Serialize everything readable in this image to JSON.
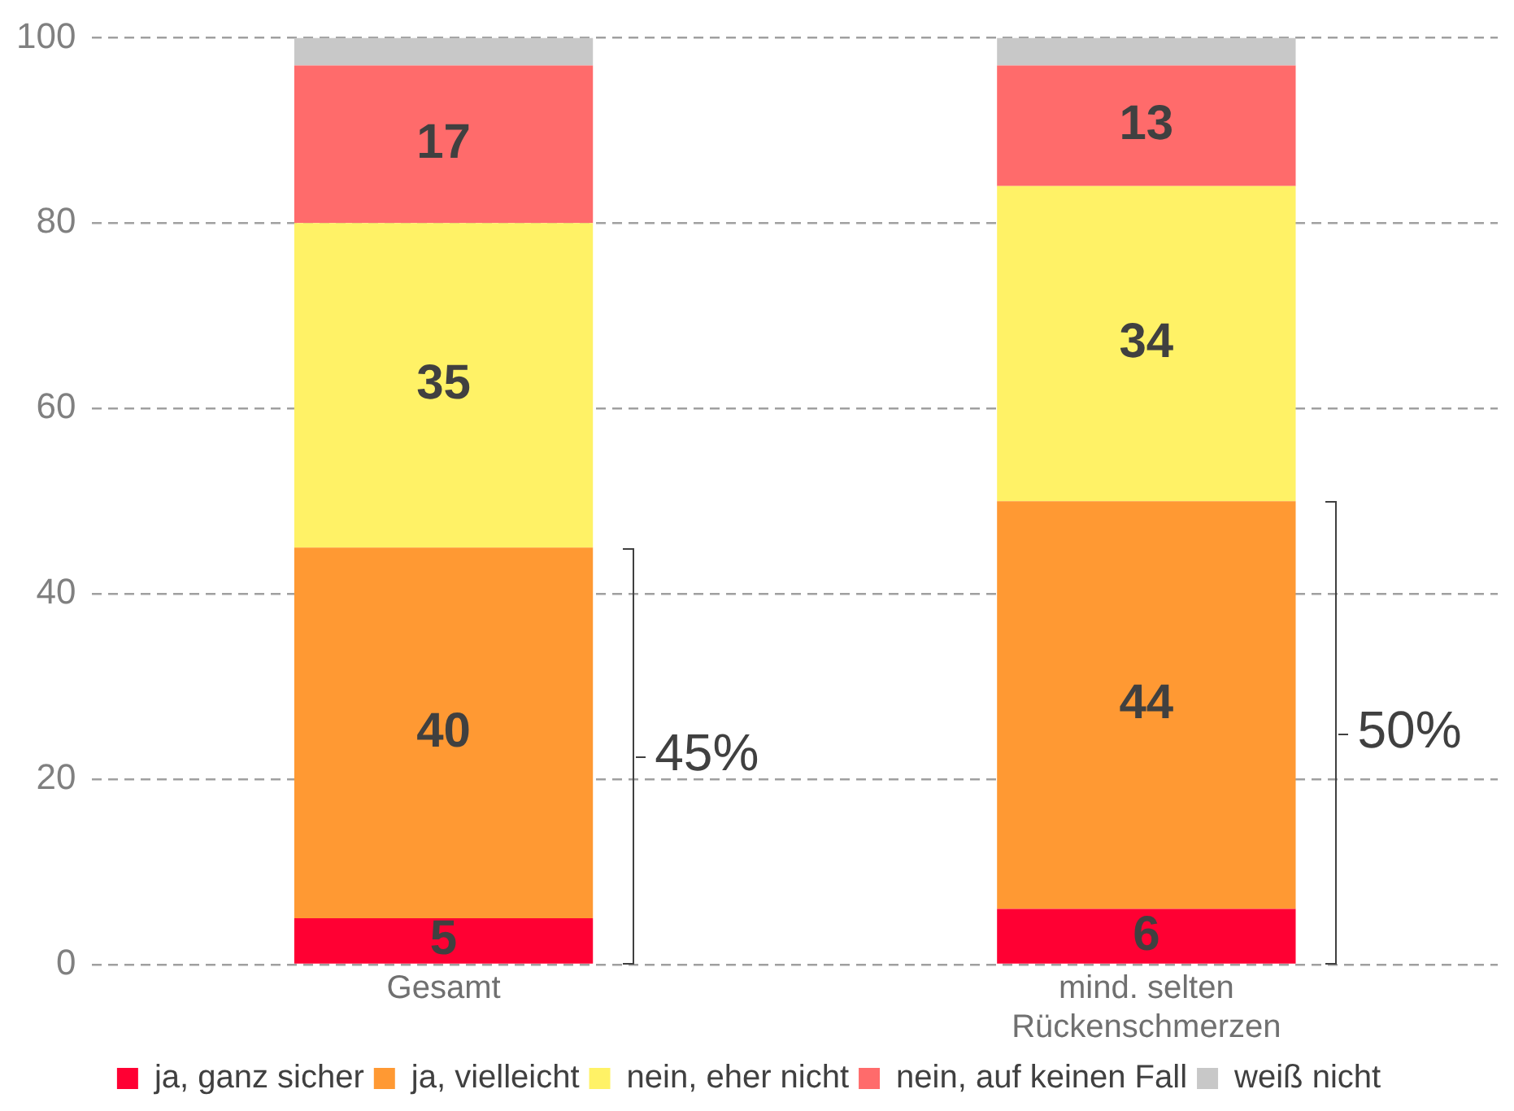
{
  "chart_data": {
    "type": "bar",
    "stacked": true,
    "categories": [
      "Gesamt",
      "mind. selten Rückenschmerzen"
    ],
    "series": [
      {
        "name": "ja, ganz sicher",
        "color": "#ff0033",
        "values": [
          5,
          6
        ],
        "value_labels": [
          "5",
          "6"
        ]
      },
      {
        "name": "ja, vielleicht",
        "color": "#ff9933",
        "values": [
          40,
          44
        ],
        "value_labels": [
          "40",
          "44"
        ]
      },
      {
        "name": "nein, eher nicht",
        "color": "#fff266",
        "values": [
          35,
          34
        ],
        "value_labels": [
          "35",
          "34"
        ]
      },
      {
        "name": "nein, auf keinen Fall",
        "color": "#ff6b6b",
        "values": [
          17,
          13
        ],
        "value_labels": [
          "17",
          "13"
        ]
      },
      {
        "name": "weiß nicht",
        "color": "#c8c8c8",
        "values": [
          3,
          3
        ],
        "value_labels": [
          null,
          null
        ]
      }
    ],
    "ylim": [
      0,
      100
    ],
    "yticks": [
      0,
      20,
      40,
      60,
      80,
      100
    ],
    "grid": "y",
    "legend": "bottom",
    "annotations": [
      "45%",
      "50%"
    ]
  }
}
